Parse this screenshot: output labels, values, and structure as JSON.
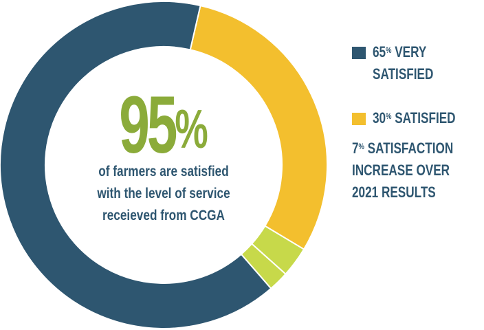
{
  "chart_data": {
    "type": "pie",
    "series": [
      {
        "label": "65% VERY SATISFIED",
        "value": 65,
        "color": "#2e5670"
      },
      {
        "label": "30% SATISFIED",
        "value": 30,
        "color": "#f3bf2e"
      },
      {
        "label": "",
        "value": 3,
        "color": "#c7d94a"
      },
      {
        "label": "",
        "value": 2,
        "color": "#c7d94a"
      }
    ],
    "center_value": "95",
    "center_value_suffix": "%",
    "center_text": [
      "of farmers are satisfied",
      "with the level of service",
      "receieved from CCGA"
    ]
  },
  "legend": {
    "items": [
      {
        "value": "65",
        "suffix": "%",
        "text_line1": "VERY",
        "text_line2": "SATISFIED",
        "color": "#2e5670"
      },
      {
        "value": "30",
        "suffix": "%",
        "text_line1": "SATISFIED",
        "color": "#f3bf2e"
      }
    ],
    "note": {
      "value": "7",
      "suffix": "%",
      "line1": "SATISFACTION",
      "line2": "INCREASE OVER",
      "line3": "2021 RESULTS"
    }
  }
}
